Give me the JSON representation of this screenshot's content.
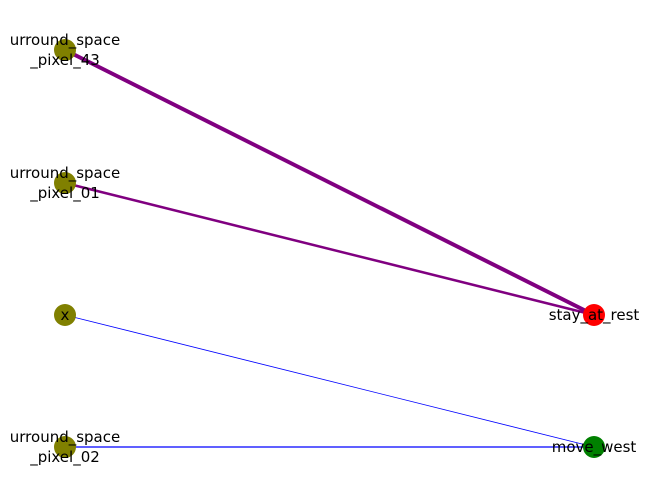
{
  "graph": {
    "nodes": [
      {
        "id": "n1",
        "label_lines": [
          "urround_space",
          "_pixel_43"
        ],
        "color": "#808000"
      },
      {
        "id": "n2",
        "label_lines": [
          "urround_space",
          "_pixel_01"
        ],
        "color": "#808000"
      },
      {
        "id": "n3",
        "label_lines": [
          "x"
        ],
        "color": "#808000"
      },
      {
        "id": "n4",
        "label_lines": [
          "urround_space",
          "_pixel_02"
        ],
        "color": "#808000"
      },
      {
        "id": "n5",
        "label_lines": [
          "stay_at_rest"
        ],
        "color": "#ff0000"
      },
      {
        "id": "n6",
        "label_lines": [
          "move_west"
        ],
        "color": "#008000"
      }
    ],
    "edges": [
      {
        "source": "n1",
        "target": "n5",
        "color": "#800080",
        "weight": 4
      },
      {
        "source": "n2",
        "target": "n5",
        "color": "#800080",
        "weight": 2.5
      },
      {
        "source": "n3",
        "target": "n6",
        "color": "#0000ff",
        "weight": 0.8
      },
      {
        "source": "n4",
        "target": "n6",
        "color": "#0000ff",
        "weight": 1.2
      }
    ]
  }
}
